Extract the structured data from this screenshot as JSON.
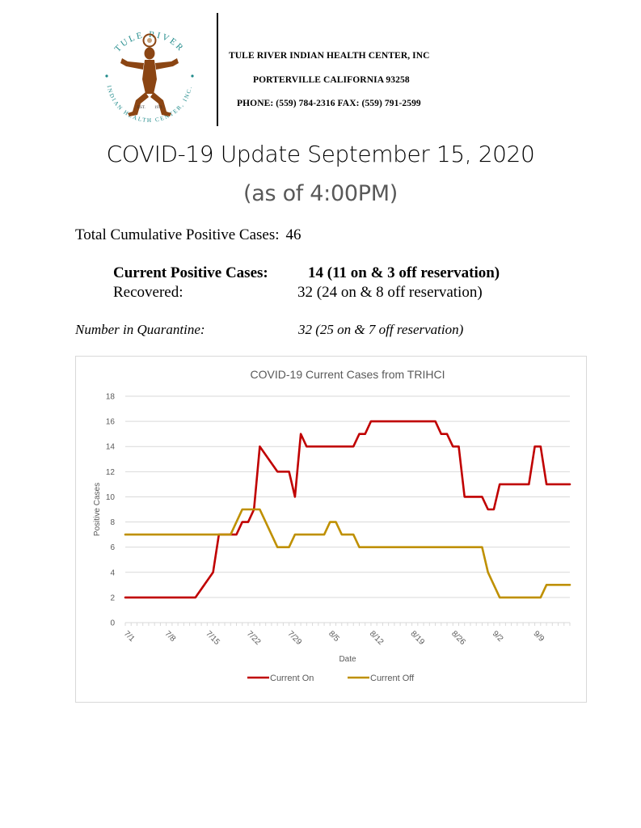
{
  "header": {
    "logo": {
      "arc_top": "TULE RIVER",
      "arc_bottom": "INDIAN HEALTH CENTER, INC.",
      "est_left": "EST.",
      "est_right": "1971",
      "teal": "#1f8a8a",
      "brown": "#8b4513"
    },
    "org_name": "TULE RIVER INDIAN HEALTH CENTER, INC",
    "org_city": "PORTERVILLE CALIFORNIA 93258",
    "org_phone": "PHONE: (559) 784-2316 FAX: (559) 791-2599"
  },
  "title": "COVID-19 Update September 15, 2020",
  "subtitle": "(as of 4:00PM)",
  "stats": {
    "total_label": "Total Cumulative Positive Cases:",
    "total_value": "46",
    "current_label": "Current Positive Cases:",
    "current_value": "14 (11 on & 3 off reservation)",
    "recovered_label": "Recovered:",
    "recovered_value": "32 (24 on & 8 off reservation)",
    "quarantine_label": "Number in Quarantine:",
    "quarantine_value": "32 (25 on & 7 off reservation)"
  },
  "chart_data": {
    "type": "line",
    "title": "COVID-19 Current Cases from TRIHCI",
    "xlabel": "Date",
    "ylabel": "Positive Cases",
    "ylim": [
      0,
      18
    ],
    "yticks": [
      0,
      2,
      4,
      6,
      8,
      10,
      12,
      14,
      16,
      18
    ],
    "x_start": "7/1",
    "x_end": "9/15",
    "x_tick_labels": [
      "7/1",
      "7/8",
      "7/15",
      "7/22",
      "7/29",
      "8/5",
      "8/12",
      "8/19",
      "8/26",
      "9/2",
      "9/9"
    ],
    "grid": true,
    "legend_position": "bottom",
    "series": [
      {
        "name": "Current On",
        "color": "#c00000",
        "points": [
          [
            "7/1",
            2
          ],
          [
            "7/13",
            2
          ],
          [
            "7/16",
            4
          ],
          [
            "7/17",
            7
          ],
          [
            "7/20",
            7
          ],
          [
            "7/21",
            8
          ],
          [
            "7/22",
            8
          ],
          [
            "7/23",
            9
          ],
          [
            "7/24",
            14
          ],
          [
            "7/27",
            12
          ],
          [
            "7/29",
            12
          ],
          [
            "7/30",
            10
          ],
          [
            "7/31",
            15
          ],
          [
            "8/1",
            14
          ],
          [
            "8/9",
            14
          ],
          [
            "8/10",
            15
          ],
          [
            "8/11",
            15
          ],
          [
            "8/12",
            16
          ],
          [
            "8/23",
            16
          ],
          [
            "8/24",
            15
          ],
          [
            "8/25",
            15
          ],
          [
            "8/26",
            14
          ],
          [
            "8/27",
            14
          ],
          [
            "8/28",
            10
          ],
          [
            "8/31",
            10
          ],
          [
            "9/1",
            9
          ],
          [
            "9/2",
            9
          ],
          [
            "9/3",
            11
          ],
          [
            "9/8",
            11
          ],
          [
            "9/9",
            14
          ],
          [
            "9/10",
            14
          ],
          [
            "9/11",
            11
          ],
          [
            "9/15",
            11
          ]
        ]
      },
      {
        "name": "Current Off",
        "color": "#bf9000",
        "points": [
          [
            "7/1",
            7
          ],
          [
            "7/18",
            7
          ],
          [
            "7/19",
            7
          ],
          [
            "7/20",
            8
          ],
          [
            "7/21",
            9
          ],
          [
            "7/24",
            9
          ],
          [
            "7/27",
            6
          ],
          [
            "7/29",
            6
          ],
          [
            "7/30",
            7
          ],
          [
            "8/4",
            7
          ],
          [
            "8/5",
            8
          ],
          [
            "8/6",
            8
          ],
          [
            "8/7",
            7
          ],
          [
            "8/9",
            7
          ],
          [
            "8/10",
            6
          ],
          [
            "8/31",
            6
          ],
          [
            "9/1",
            4
          ],
          [
            "9/3",
            2
          ],
          [
            "9/10",
            2
          ],
          [
            "9/11",
            3
          ],
          [
            "9/15",
            3
          ]
        ]
      }
    ]
  }
}
